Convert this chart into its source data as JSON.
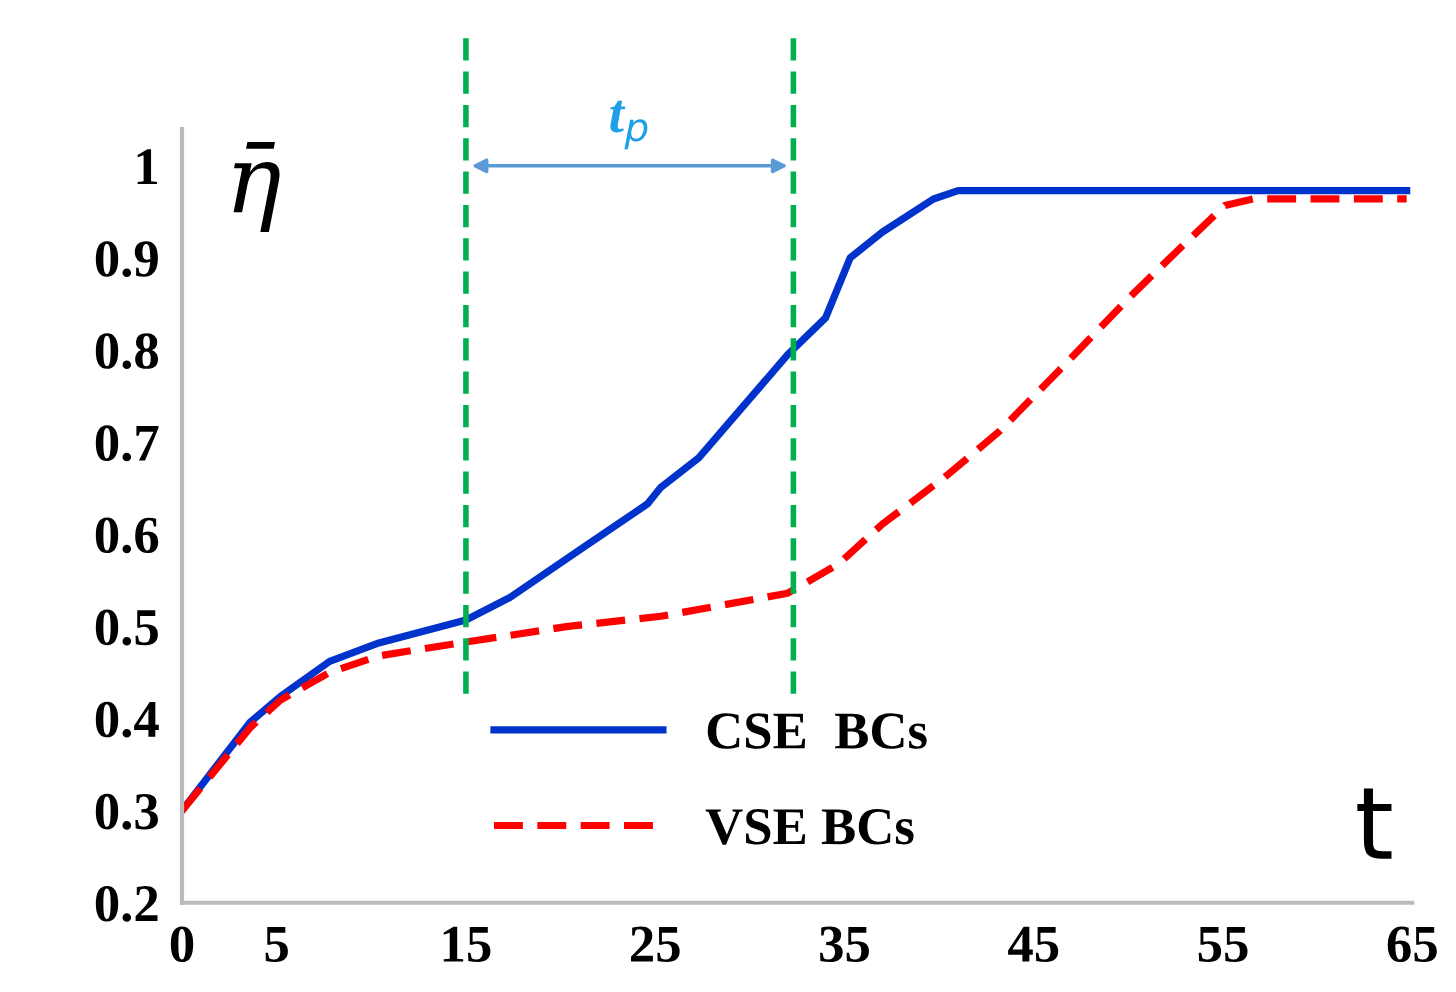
{
  "chart_data": {
    "type": "line",
    "xlabel": "t",
    "ylabel": "η̄",
    "xlim": [
      0,
      65
    ],
    "xticks": [
      0,
      5,
      15,
      25,
      35,
      45,
      55,
      65
    ],
    "ylim": [
      0.2,
      1.04
    ],
    "yticks": [
      0.2,
      0.3,
      0.4,
      0.5,
      0.6,
      0.7,
      0.8,
      0.9,
      1
    ],
    "grid": false,
    "legend": "bottom",
    "marker": "none",
    "series": [
      {
        "name": "CSE  BCs",
        "color": "#0033cc",
        "line_style": "solid",
        "x": [
          0,
          3.6,
          5.2,
          7.8,
          10.4,
          15,
          17.3,
          21,
          24.6,
          25.3,
          27.3,
          32,
          34,
          35.3,
          37,
          39.7,
          41,
          64.7
        ],
        "values": [
          0.3,
          0.396,
          0.424,
          0.462,
          0.482,
          0.507,
          0.531,
          0.583,
          0.633,
          0.651,
          0.683,
          0.795,
          0.835,
          0.9,
          0.928,
          0.964,
          0.973,
          0.973
        ]
      },
      {
        "name": "VSE BCs",
        "color": "#ff0000",
        "line_style": "dashed",
        "x": [
          0,
          3.6,
          5.2,
          7.8,
          10.4,
          15,
          20.4,
          25.3,
          32,
          34.7,
          37,
          40.3,
          43.2,
          46.3,
          50,
          52.9,
          55.1,
          56.6,
          64.7
        ],
        "values": [
          0.3,
          0.39,
          0.42,
          0.45,
          0.468,
          0.483,
          0.5,
          0.511,
          0.536,
          0.568,
          0.611,
          0.662,
          0.712,
          0.777,
          0.856,
          0.914,
          0.957,
          0.964,
          0.964
        ]
      }
    ],
    "ref_lines": [
      {
        "axis": "x",
        "value": 15,
        "color": "#00b050",
        "line_style": "dashed"
      },
      {
        "axis": "x",
        "value": 32.3,
        "color": "#00b050",
        "line_style": "dashed"
      }
    ],
    "annotations": [
      "t$_{p}$"
    ]
  }
}
